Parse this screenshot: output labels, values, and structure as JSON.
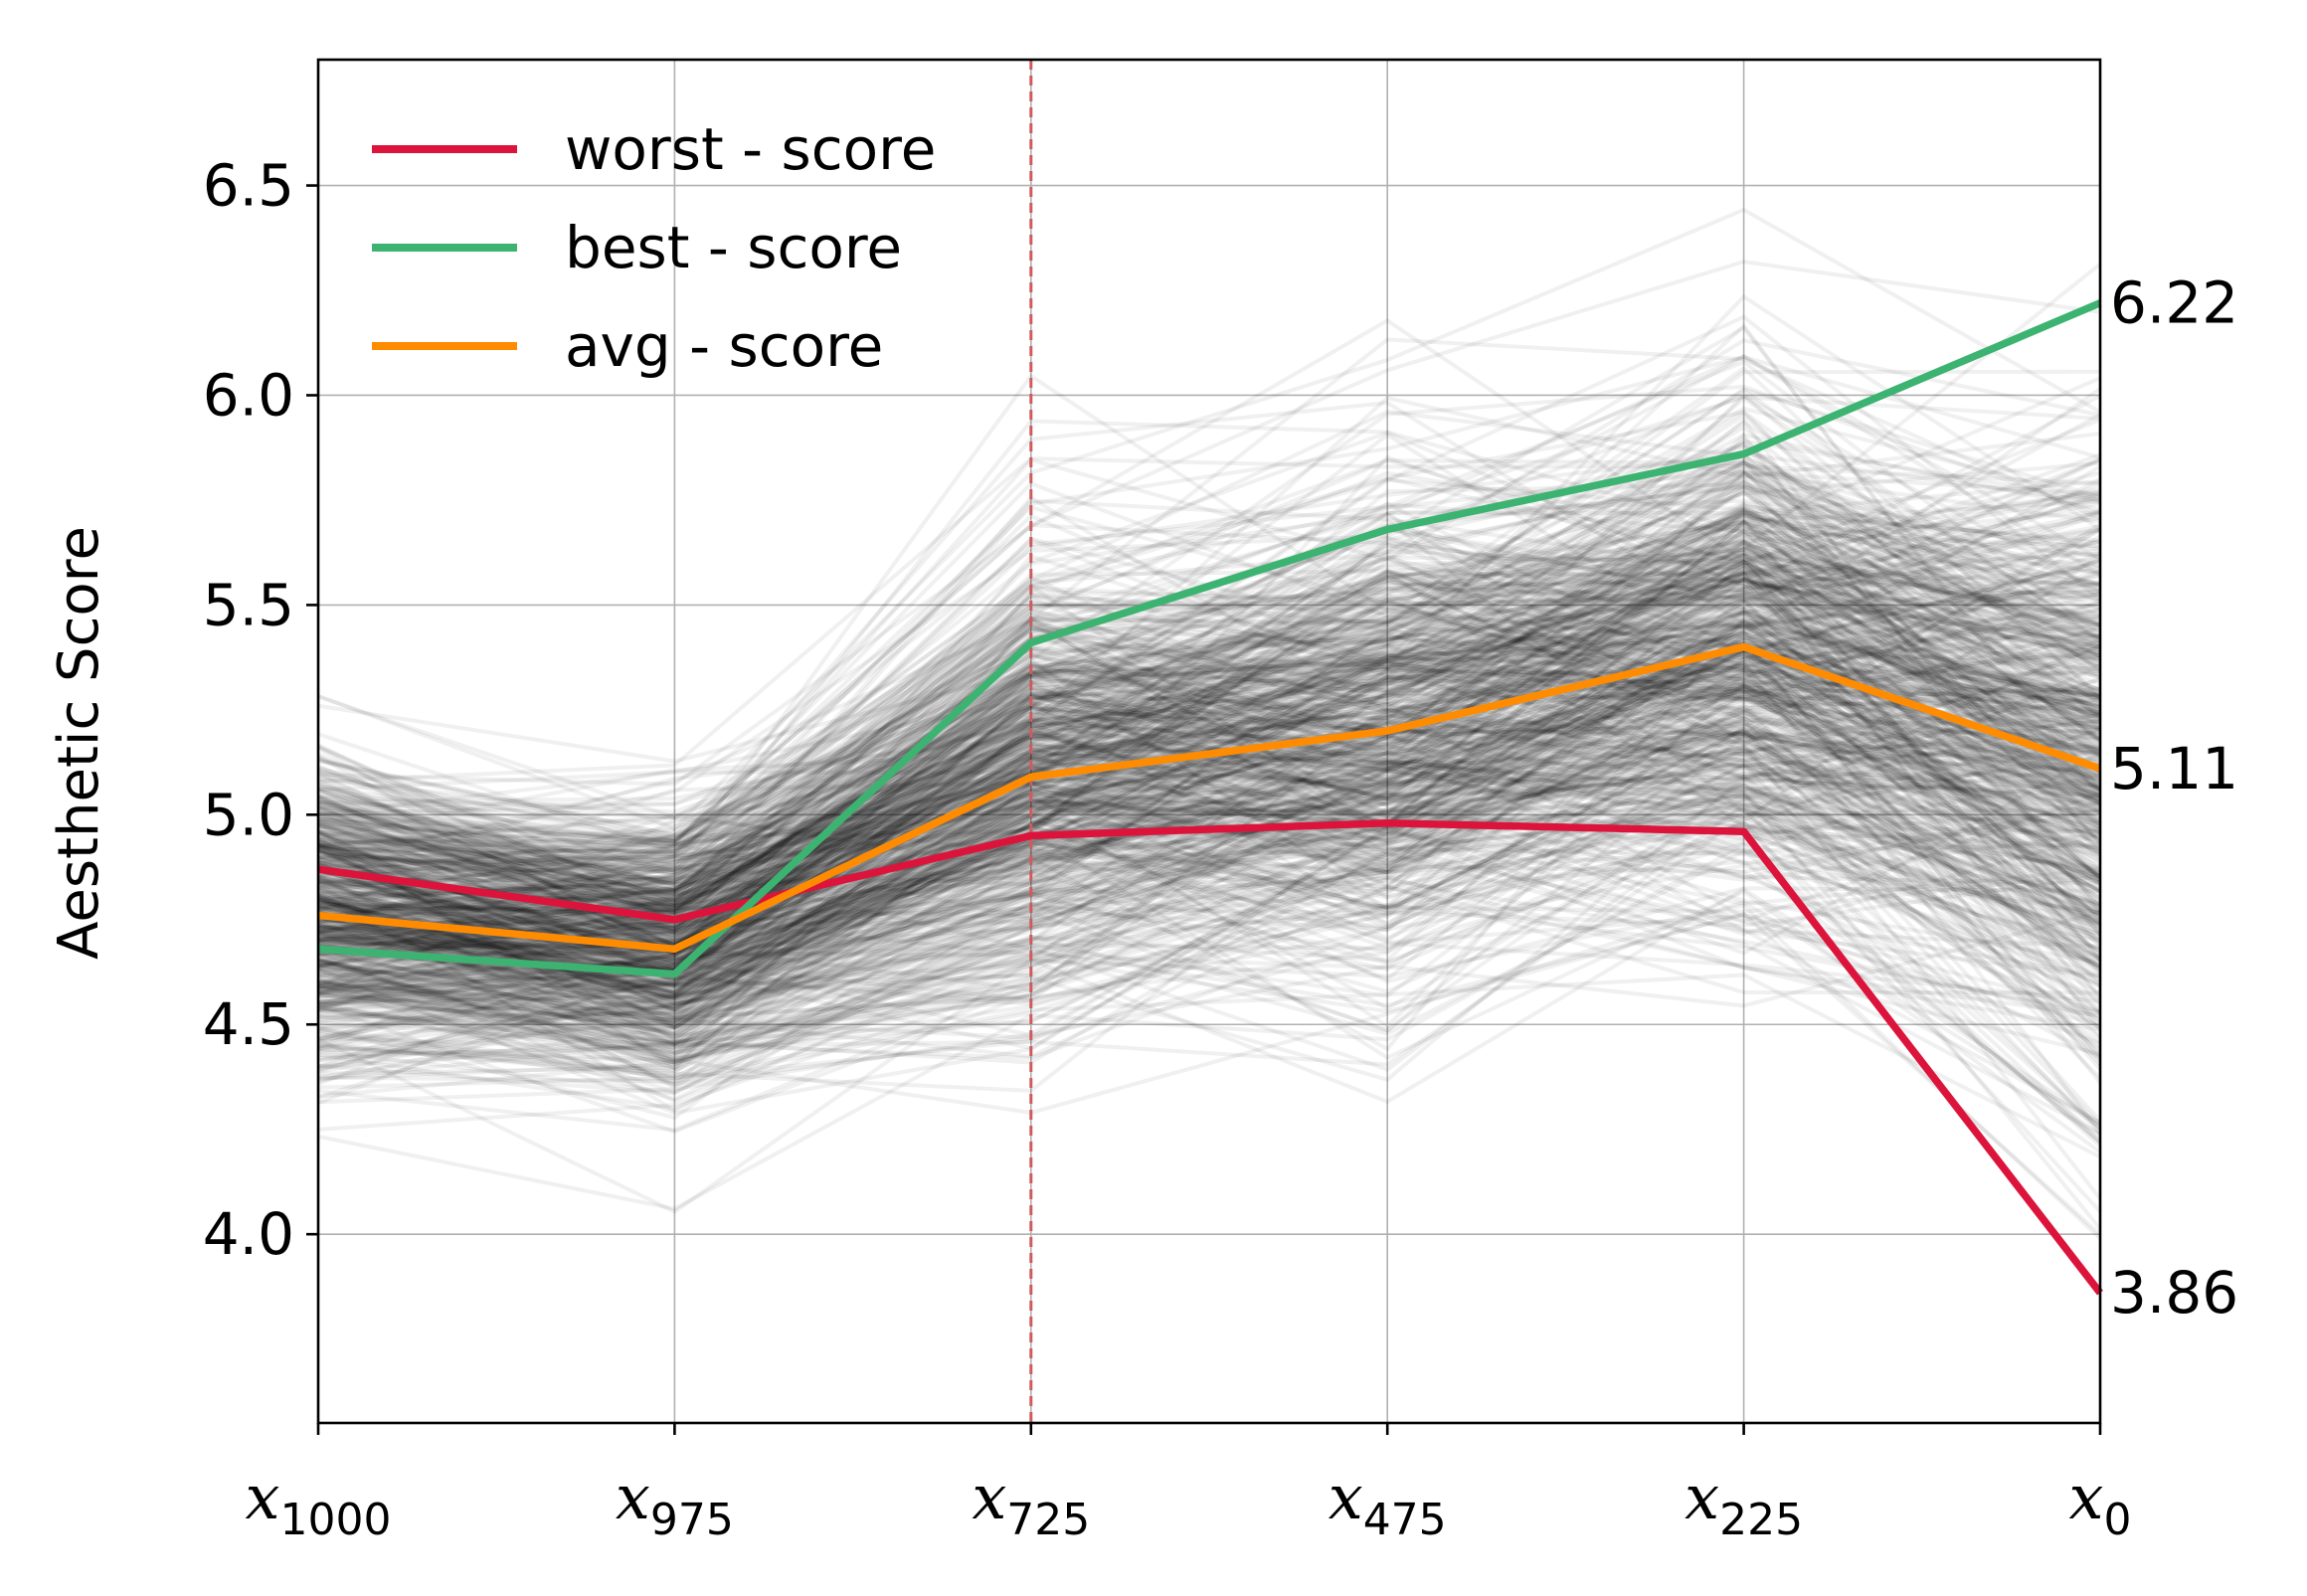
{
  "chart_data": {
    "type": "line",
    "ylabel": "Aesthetic Score",
    "ylim": [
      3.55,
      6.8
    ],
    "yticks": [
      "4.0",
      "4.5",
      "5.0",
      "5.5",
      "6.0",
      "6.5"
    ],
    "categories": [
      {
        "base": "x",
        "sub": "1000"
      },
      {
        "base": "x",
        "sub": "975"
      },
      {
        "base": "x",
        "sub": "725"
      },
      {
        "base": "x",
        "sub": "475"
      },
      {
        "base": "x",
        "sub": "225"
      },
      {
        "base": "x",
        "sub": "0"
      }
    ],
    "grid": true,
    "legend_position": "top-left",
    "vertical_marker_category_index": 2,
    "vertical_marker_color": "#cd5c5c",
    "background_trajectories": {
      "count": "many",
      "color": "#000000",
      "mean": [
        4.76,
        4.68,
        5.09,
        5.2,
        5.4,
        5.11
      ],
      "spread": [
        0.22,
        0.2,
        0.32,
        0.36,
        0.36,
        0.45
      ]
    },
    "series": [
      {
        "name": "worst - score",
        "color": "#dc143c",
        "values": [
          4.87,
          4.75,
          4.95,
          4.98,
          4.96,
          3.86
        ]
      },
      {
        "name": "best - score",
        "color": "#3cb371",
        "values": [
          4.68,
          4.62,
          5.41,
          5.68,
          5.86,
          6.22
        ]
      },
      {
        "name": "avg - score",
        "color": "#ff8c00",
        "values": [
          4.76,
          4.68,
          5.09,
          5.2,
          5.4,
          5.11
        ]
      }
    ],
    "end_labels": [
      "6.22",
      "5.11",
      "3.86"
    ]
  }
}
